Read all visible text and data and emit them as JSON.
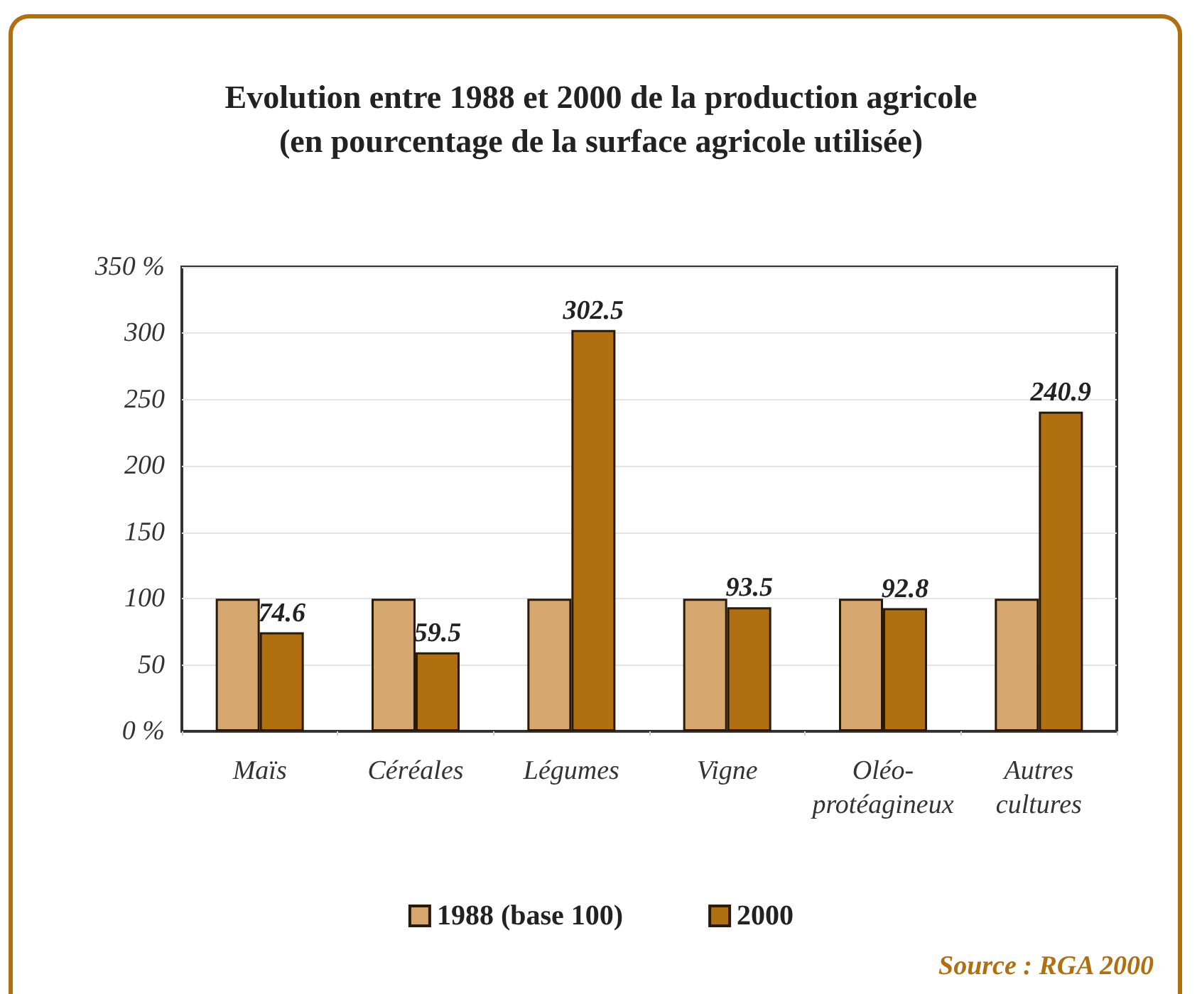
{
  "chart_data": {
    "type": "bar",
    "title": "Evolution entre 1988 et 2000 de la production agricole\n(en pourcentage de la surface agricole utilisée)",
    "categories": [
      "Maïs",
      "Céréales",
      "Légumes",
      "Vigne",
      "Oléo-\nprotéagineux",
      "Autres\ncultures"
    ],
    "series": [
      {
        "name": "1988 (base 100)",
        "color": "#d6a86f",
        "values": [
          100,
          100,
          100,
          100,
          100,
          100
        ]
      },
      {
        "name": "2000",
        "color": "#b0700f",
        "values": [
          74.6,
          59.5,
          302.5,
          93.5,
          92.8,
          240.9
        ],
        "value_labels": [
          "74.6",
          "59.5",
          "302.5",
          "93.5",
          "92.8",
          "240.9"
        ]
      }
    ],
    "ylim": [
      0,
      350
    ],
    "yticks": [
      {
        "value": 0,
        "label": "0 %"
      },
      50,
      100,
      150,
      200,
      250,
      300,
      {
        "value": 350,
        "label": "350 %"
      }
    ],
    "grid": "y",
    "legend": "bottom",
    "annotations": [
      "Source : RGA 2000"
    ]
  }
}
